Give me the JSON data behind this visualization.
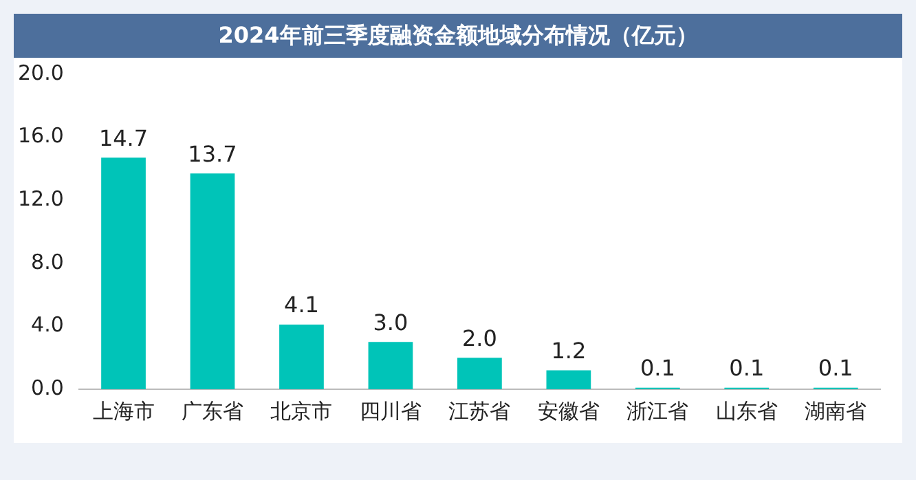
{
  "chart_data": {
    "type": "bar",
    "title": "2024年前三季度融资金额地域分布情况（亿元）",
    "categories": [
      "上海市",
      "广东省",
      "北京市",
      "四川省",
      "江苏省",
      "安徽省",
      "浙江省",
      "山东省",
      "湖南省"
    ],
    "values": [
      14.7,
      13.7,
      4.1,
      3.0,
      2.0,
      1.2,
      0.1,
      0.1,
      0.1
    ],
    "value_labels": [
      "14.7",
      "13.7",
      "4.1",
      "3.0",
      "2.0",
      "1.2",
      "0.1",
      "0.1",
      "0.1"
    ],
    "color": "#00c4b8",
    "ylim": [
      0,
      20
    ],
    "yticks": [
      {
        "value": 0,
        "label": "0.0"
      },
      {
        "value": 4,
        "label": "4.0"
      },
      {
        "value": 8,
        "label": "8.0"
      },
      {
        "value": 12,
        "label": "12.0"
      },
      {
        "value": 16,
        "label": "16.0"
      },
      {
        "value": 20,
        "label": "20.0"
      }
    ],
    "grid": false,
    "legend": false
  }
}
